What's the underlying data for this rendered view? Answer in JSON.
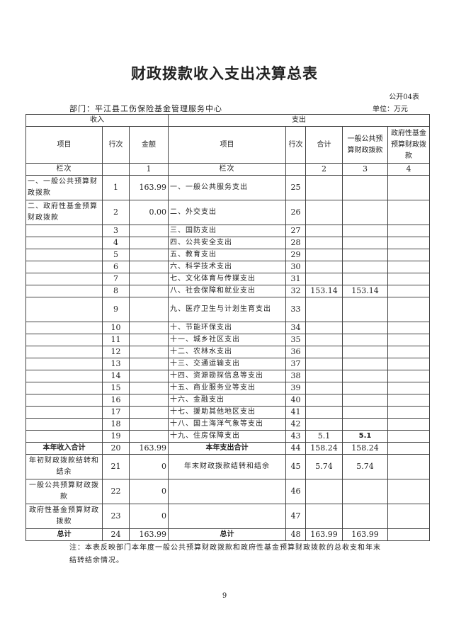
{
  "title": "财政拨款收入支出决算总表",
  "code": "公开04表",
  "department": "部门：平江县工伤保险基金管理服务中心",
  "unit": "单位：万元",
  "header": {
    "income": "收入",
    "expense": "支出",
    "item": "项目",
    "line": "行次",
    "amount": "金额",
    "exp_item": "项目",
    "exp_line": "行次",
    "total": "合计",
    "general": "一般公共预算财政拨款",
    "fund": "政府性基金预算财政拨款"
  },
  "col_row": {
    "label": "栏次",
    "c1": "1",
    "label2": "栏次",
    "c2": "2",
    "c3": "3",
    "c4": "4"
  },
  "rows": [
    {
      "in_item": "一、一般公共预算财政拨款",
      "in_no": "1",
      "in_amt": "163.99",
      "ex_item": "一、一般公共服务支出",
      "ex_no": "25",
      "total": "",
      "general": "",
      "fund": ""
    },
    {
      "in_item": "二、政府性基金预算财政拨款",
      "in_no": "2",
      "in_amt": "0.00",
      "ex_item": "二、外交支出",
      "ex_no": "26",
      "total": "",
      "general": "",
      "fund": ""
    },
    {
      "in_item": "",
      "in_no": "3",
      "in_amt": "",
      "ex_item": "三、国防支出",
      "ex_no": "27",
      "total": "",
      "general": "",
      "fund": ""
    },
    {
      "in_item": "",
      "in_no": "4",
      "in_amt": "",
      "ex_item": "四、公共安全支出",
      "ex_no": "28",
      "total": "",
      "general": "",
      "fund": ""
    },
    {
      "in_item": "",
      "in_no": "5",
      "in_amt": "",
      "ex_item": "五、教育支出",
      "ex_no": "29",
      "total": "",
      "general": "",
      "fund": ""
    },
    {
      "in_item": "",
      "in_no": "6",
      "in_amt": "",
      "ex_item": "六、科学技术支出",
      "ex_no": "30",
      "total": "",
      "general": "",
      "fund": ""
    },
    {
      "in_item": "",
      "in_no": "7",
      "in_amt": "",
      "ex_item": "七、文化体育与传媒支出",
      "ex_no": "31",
      "total": "",
      "general": "",
      "fund": ""
    },
    {
      "in_item": "",
      "in_no": "8",
      "in_amt": "",
      "ex_item": "八、社会保障和就业支出",
      "ex_no": "32",
      "total": "153.14",
      "general": "153.14",
      "fund": ""
    },
    {
      "in_item": "",
      "in_no": "9",
      "in_amt": "",
      "ex_item": "九、医疗卫生与计划生育支出",
      "ex_no": "33",
      "total": "",
      "general": "",
      "fund": ""
    },
    {
      "in_item": "",
      "in_no": "10",
      "in_amt": "",
      "ex_item": "十、节能环保支出",
      "ex_no": "34",
      "total": "",
      "general": "",
      "fund": ""
    },
    {
      "in_item": "",
      "in_no": "11",
      "in_amt": "",
      "ex_item": "十一、城乡社区支出",
      "ex_no": "35",
      "total": "",
      "general": "",
      "fund": ""
    },
    {
      "in_item": "",
      "in_no": "12",
      "in_amt": "",
      "ex_item": "十二、农林水支出",
      "ex_no": "36",
      "total": "",
      "general": "",
      "fund": ""
    },
    {
      "in_item": "",
      "in_no": "13",
      "in_amt": "",
      "ex_item": "十三、交通运输支出",
      "ex_no": "37",
      "total": "",
      "general": "",
      "fund": ""
    },
    {
      "in_item": "",
      "in_no": "14",
      "in_amt": "",
      "ex_item": "十四、资源勘探信息等支出",
      "ex_no": "38",
      "total": "",
      "general": "",
      "fund": ""
    },
    {
      "in_item": "",
      "in_no": "15",
      "in_amt": "",
      "ex_item": "十五、商业服务业等支出",
      "ex_no": "39",
      "total": "",
      "general": "",
      "fund": ""
    },
    {
      "in_item": "",
      "in_no": "16",
      "in_amt": "",
      "ex_item": "十六、金融支出",
      "ex_no": "40",
      "total": "",
      "general": "",
      "fund": ""
    },
    {
      "in_item": "",
      "in_no": "17",
      "in_amt": "",
      "ex_item": "十七、援助其他地区支出",
      "ex_no": "41",
      "total": "",
      "general": "",
      "fund": ""
    },
    {
      "in_item": "",
      "in_no": "18",
      "in_amt": "",
      "ex_item": "十八、国土海洋气象等支出",
      "ex_no": "42",
      "total": "",
      "general": "",
      "fund": ""
    },
    {
      "in_item": "",
      "in_no": "19",
      "in_amt": "",
      "ex_item": "十九、住房保障支出",
      "ex_no": "43",
      "total": "5.1",
      "general": "5.1",
      "fund": ""
    },
    {
      "in_item": "本年收入合计",
      "in_no": "20",
      "in_amt": "163.99",
      "ex_item": "本年支出合计",
      "ex_no": "44",
      "total": "158.24",
      "general": "158.24",
      "fund": ""
    },
    {
      "in_item": "年初财政拨款结转和结余",
      "in_no": "21",
      "in_amt": "0",
      "ex_item": "年末财政拨款结转和结余",
      "ex_no": "45",
      "total": "5.74",
      "general": "5.74",
      "fund": ""
    },
    {
      "in_item": "一般公共预算财政拨款",
      "in_no": "22",
      "in_amt": "0",
      "ex_item": "",
      "ex_no": "46",
      "total": "",
      "general": "",
      "fund": ""
    },
    {
      "in_item": "政府性基金预算财政拨款",
      "in_no": "23",
      "in_amt": "0",
      "ex_item": "",
      "ex_no": "47",
      "total": "",
      "general": "",
      "fund": ""
    },
    {
      "in_item": "总计",
      "in_no": "24",
      "in_amt": "163.99",
      "ex_item": "总计",
      "ex_no": "48",
      "total": "163.99",
      "general": "163.99",
      "fund": ""
    }
  ],
  "note": "注：本表反映部门本年度一般公共预算财政拨款和政府性基金预算财政拨款的总收支和年末结转结余情况。",
  "page_number": "9"
}
